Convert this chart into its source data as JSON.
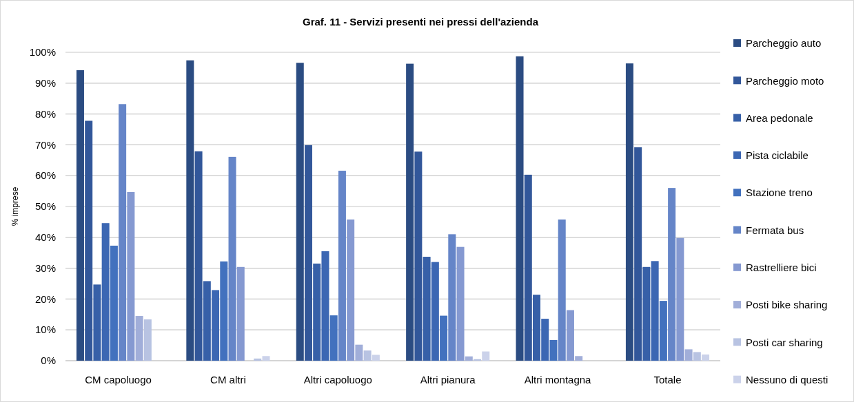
{
  "chart_data": {
    "type": "bar",
    "title": "Graf. 11 - Servizi presenti nei pressi dell'azienda",
    "ylabel": "% imprese",
    "categories": [
      "CM capoluogo",
      "CM altri",
      "Altri capoluogo",
      "Altri pianura",
      "Altri montagna",
      "Totale"
    ],
    "series": [
      {
        "name": "Parcheggio auto",
        "color": "#2b4c82",
        "values": [
          94.2,
          97.4,
          96.6,
          96.3,
          98.7,
          96.4
        ]
      },
      {
        "name": "Parcheggio moto",
        "color": "#32579a",
        "values": [
          77.8,
          67.9,
          69.9,
          67.8,
          60.3,
          69.2
        ]
      },
      {
        "name": "Area pedonale",
        "color": "#3760a8",
        "values": [
          24.7,
          25.8,
          31.5,
          33.7,
          21.4,
          30.4
        ]
      },
      {
        "name": "Pista ciclabile",
        "color": "#3c67b3",
        "values": [
          44.6,
          22.9,
          35.5,
          32.0,
          13.6,
          32.3
        ]
      },
      {
        "name": "Stazione treno",
        "color": "#4271be",
        "values": [
          37.3,
          32.2,
          14.7,
          14.6,
          6.7,
          19.4
        ]
      },
      {
        "name": "Fermata bus",
        "color": "#6585c8",
        "values": [
          83.2,
          66.1,
          61.6,
          41.0,
          45.8,
          56.0
        ]
      },
      {
        "name": "Rastrelliere bici",
        "color": "#8599d1",
        "values": [
          54.7,
          30.4,
          45.8,
          36.9,
          16.4,
          39.8
        ]
      },
      {
        "name": "Posti bike sharing",
        "color": "#a1aed9",
        "values": [
          14.5,
          0,
          5.2,
          1.4,
          1.5,
          3.7
        ]
      },
      {
        "name": "Posti car sharing",
        "color": "#b8c3e2",
        "values": [
          13.4,
          0.7,
          3.3,
          0.5,
          0,
          2.8
        ]
      },
      {
        "name": "Nessuno di questi",
        "color": "#cbd2ea",
        "values": [
          0,
          1.5,
          1.9,
          3.0,
          0,
          2.0
        ]
      }
    ],
    "ylim": [
      0,
      100
    ],
    "yticks": [
      {
        "value": 0,
        "label": "0%"
      },
      {
        "value": 10,
        "label": "10%"
      },
      {
        "value": 20,
        "label": "20%"
      },
      {
        "value": 30,
        "label": "30%"
      },
      {
        "value": 40,
        "label": "40%"
      },
      {
        "value": 50,
        "label": "50%"
      },
      {
        "value": 60,
        "label": "60%"
      },
      {
        "value": 70,
        "label": "70%"
      },
      {
        "value": 80,
        "label": "80%"
      },
      {
        "value": 90,
        "label": "90%"
      },
      {
        "value": 100,
        "label": "100%"
      }
    ],
    "grid": "y",
    "legend": "right"
  }
}
